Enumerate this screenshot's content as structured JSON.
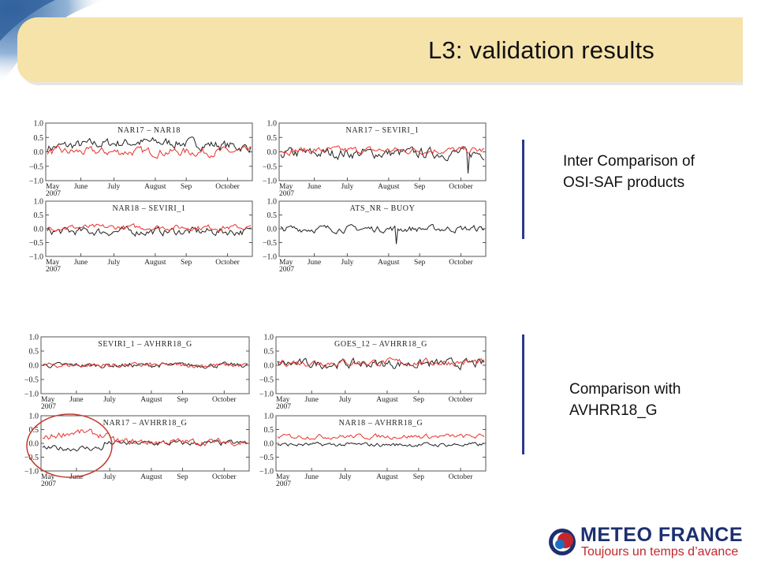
{
  "header": {
    "title": "L3: validation results"
  },
  "groups": [
    {
      "caption_lines": [
        "Inter Comparison of",
        "OSI-SAF products"
      ],
      "panels": [
        "NAR17 – NAR18",
        "NAR17 – SEVIRI_1",
        "NAR18 – SEVIRI_1",
        "ATS_NR – BUOY"
      ]
    },
    {
      "caption_lines": [
        "Comparison with",
        "AVHRR18_G"
      ],
      "panels": [
        "SEVIRI_1 – AVHRR18_G",
        "GOES_12 – AVHRR18_G",
        "NAR17 – AVHRR18_G",
        "NAR18 – AVHRR18_G"
      ]
    }
  ],
  "highlight": {
    "panel": "NAR17 – AVHRR18_G",
    "shape": "circle",
    "color": "#c0392b",
    "period": "May–June"
  },
  "logo": {
    "title": "METEO FRANCE",
    "tagline": "Toujours un temps d’avance"
  },
  "colors": {
    "series_black": "#222222",
    "series_red": "#e8322c",
    "accent_bar": "#2b3990",
    "header": "#f6e3aa"
  },
  "chart_data": [
    {
      "type": "line",
      "title": "NAR17 – NAR18",
      "ylim": [
        -1.0,
        1.0
      ],
      "yticks": [
        "1.0",
        "0.5",
        "0.0",
        "−0.5",
        "−1.0"
      ],
      "xticks": [
        "May\n2007",
        "June",
        "July",
        "August",
        "Sep",
        "October"
      ],
      "series": [
        {
          "color": "#222222",
          "mean": 0.15,
          "noise": 0.14,
          "shape": "hump"
        },
        {
          "color": "#e8322c",
          "mean": 0.0,
          "noise": 0.12,
          "shape": "flat"
        }
      ]
    },
    {
      "type": "line",
      "title": "NAR17 – SEVIRI_1",
      "ylim": [
        -1.0,
        1.0
      ],
      "yticks": [
        "1.0",
        "0.5",
        "0.0",
        "−0.5",
        "−1.0"
      ],
      "xticks": [
        "May\n2007",
        "June",
        "July",
        "August",
        "Sep",
        "October"
      ],
      "series": [
        {
          "color": "#222222",
          "mean": -0.05,
          "noise": 0.15,
          "shape": "spike_end"
        },
        {
          "color": "#e8322c",
          "mean": 0.05,
          "noise": 0.1,
          "shape": "flat"
        }
      ]
    },
    {
      "type": "line",
      "title": "NAR18 – SEVIRI_1",
      "ylim": [
        -1.0,
        1.0
      ],
      "yticks": [
        "1.0",
        "0.5",
        "0.0",
        "−0.5",
        "−1.0"
      ],
      "xticks": [
        "May\n2007",
        "June",
        "July",
        "August",
        "Sep",
        "October"
      ],
      "series": [
        {
          "color": "#222222",
          "mean": -0.1,
          "noise": 0.12,
          "shape": "flat"
        },
        {
          "color": "#e8322c",
          "mean": 0.05,
          "noise": 0.08,
          "shape": "flat"
        }
      ]
    },
    {
      "type": "line",
      "title": "ATS_NR – BUOY",
      "ylim": [
        -1.0,
        1.0
      ],
      "yticks": [
        "1.0",
        "0.5",
        "0.0",
        "−0.5",
        "−1.0"
      ],
      "xticks": [
        "May\n2007",
        "June",
        "July",
        "August",
        "Sep",
        "October"
      ],
      "series": [
        {
          "color": "#222222",
          "mean": 0.0,
          "noise": 0.1,
          "shape": "spike_mid"
        }
      ]
    },
    {
      "type": "line",
      "title": "SEVIRI_1 – AVHRR18_G",
      "ylim": [
        -1.0,
        1.0
      ],
      "yticks": [
        "1.0",
        "0.5",
        "0.0",
        "−0.5",
        "−1.0"
      ],
      "xticks": [
        "May\n2007",
        "June",
        "July",
        "August",
        "Sep",
        "October"
      ],
      "series": [
        {
          "color": "#222222",
          "mean": 0.0,
          "noise": 0.07,
          "shape": "flat"
        },
        {
          "color": "#e8322c",
          "mean": 0.0,
          "noise": 0.07,
          "shape": "flat"
        }
      ]
    },
    {
      "type": "line",
      "title": "GOES_12 – AVHRR18_G",
      "ylim": [
        -1.0,
        1.0
      ],
      "yticks": [
        "1.0",
        "0.5",
        "0.0",
        "−0.5",
        "−1.0"
      ],
      "xticks": [
        "May\n2007",
        "June",
        "July",
        "August",
        "Sep",
        "October"
      ],
      "series": [
        {
          "color": "#222222",
          "mean": 0.05,
          "noise": 0.13,
          "shape": "flat"
        },
        {
          "color": "#e8322c",
          "mean": 0.1,
          "noise": 0.1,
          "shape": "flat"
        }
      ]
    },
    {
      "type": "line",
      "title": "NAR17 – AVHRR18_G",
      "ylim": [
        -1.0,
        1.0
      ],
      "yticks": [
        "1.0",
        "0.5",
        "0.0",
        "−0.5",
        "−1.0"
      ],
      "xticks": [
        "May\n2007",
        "June",
        "July",
        "August",
        "Sep",
        "October"
      ],
      "series": [
        {
          "color": "#222222",
          "mean": 0.0,
          "noise": 0.08,
          "shape": "dip_start"
        },
        {
          "color": "#e8322c",
          "mean": 0.15,
          "noise": 0.1,
          "shape": "hump_start"
        }
      ]
    },
    {
      "type": "line",
      "title": "NAR18 – AVHRR18_G",
      "ylim": [
        -1.0,
        1.0
      ],
      "yticks": [
        "1.0",
        "0.5",
        "0.0",
        "−0.5",
        "−1.0"
      ],
      "xticks": [
        "May\n2007",
        "June",
        "July",
        "August",
        "Sep",
        "October"
      ],
      "series": [
        {
          "color": "#222222",
          "mean": -0.05,
          "noise": 0.06,
          "shape": "flat"
        },
        {
          "color": "#e8322c",
          "mean": 0.25,
          "noise": 0.07,
          "shape": "flat"
        }
      ]
    }
  ]
}
